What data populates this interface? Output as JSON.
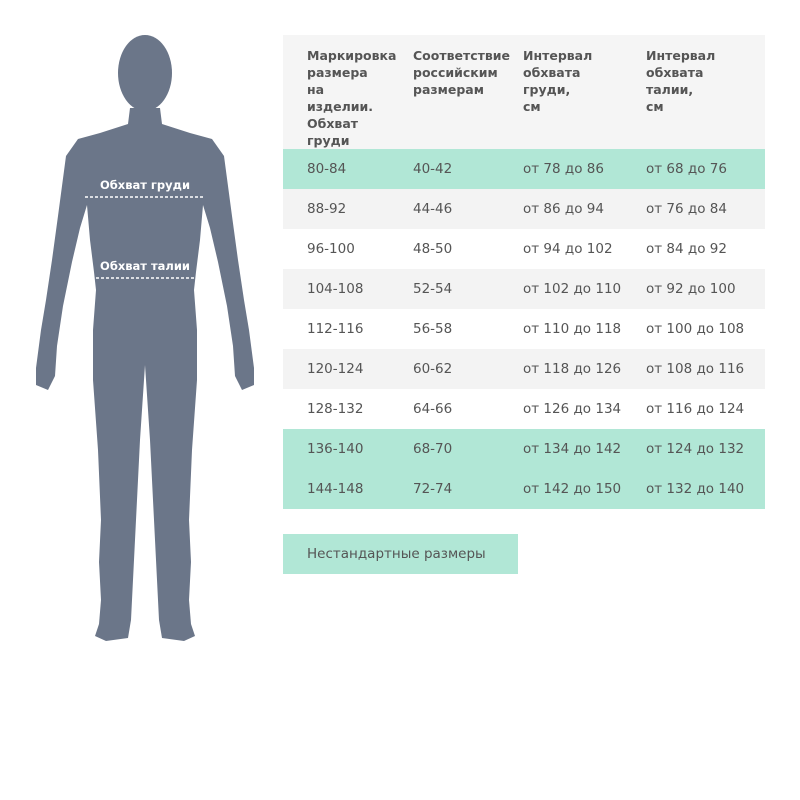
{
  "figure": {
    "chest_label": "Обхват груди",
    "waist_label": "Обхват талии",
    "color": "#6b7689"
  },
  "table": {
    "headers": [
      "Маркировка размера на изделии. Обхват груди",
      "Соответствие российским размерам",
      "Интервал обхвата груди, см",
      "Интервал обхвата талии, см"
    ],
    "rows": [
      {
        "bg": "green",
        "cells": [
          "80-84",
          "40-42",
          "от 78 до 86",
          "от 68 до 76"
        ]
      },
      {
        "bg": "gray",
        "cells": [
          "88-92",
          "44-46",
          "от 86 до 94",
          "от 76 до 84"
        ]
      },
      {
        "bg": "white",
        "cells": [
          "96-100",
          "48-50",
          "от 94 до 102",
          "от 84 до 92"
        ]
      },
      {
        "bg": "gray",
        "cells": [
          "104-108",
          "52-54",
          "от 102 до 110",
          "от 92 до 100"
        ]
      },
      {
        "bg": "white",
        "cells": [
          "112-116",
          "56-58",
          "от 110 до 118",
          "от 100 до 108"
        ]
      },
      {
        "bg": "gray",
        "cells": [
          "120-124",
          "60-62",
          "от 118 до 126",
          "от 108 до 116"
        ]
      },
      {
        "bg": "white",
        "cells": [
          "128-132",
          "64-66",
          "от 126 до 134",
          "от 116 до 124"
        ]
      },
      {
        "bg": "green",
        "cells": [
          "136-140",
          "68-70",
          "от 134 до 142",
          "от 124 до 132"
        ]
      },
      {
        "bg": "green",
        "cells": [
          "144-148",
          "72-74",
          "от 142 до 150",
          "от 132 до 140"
        ]
      }
    ],
    "highlight_color": "#b1e7d6"
  },
  "nonstandard_button": "Нестандартные размеры"
}
